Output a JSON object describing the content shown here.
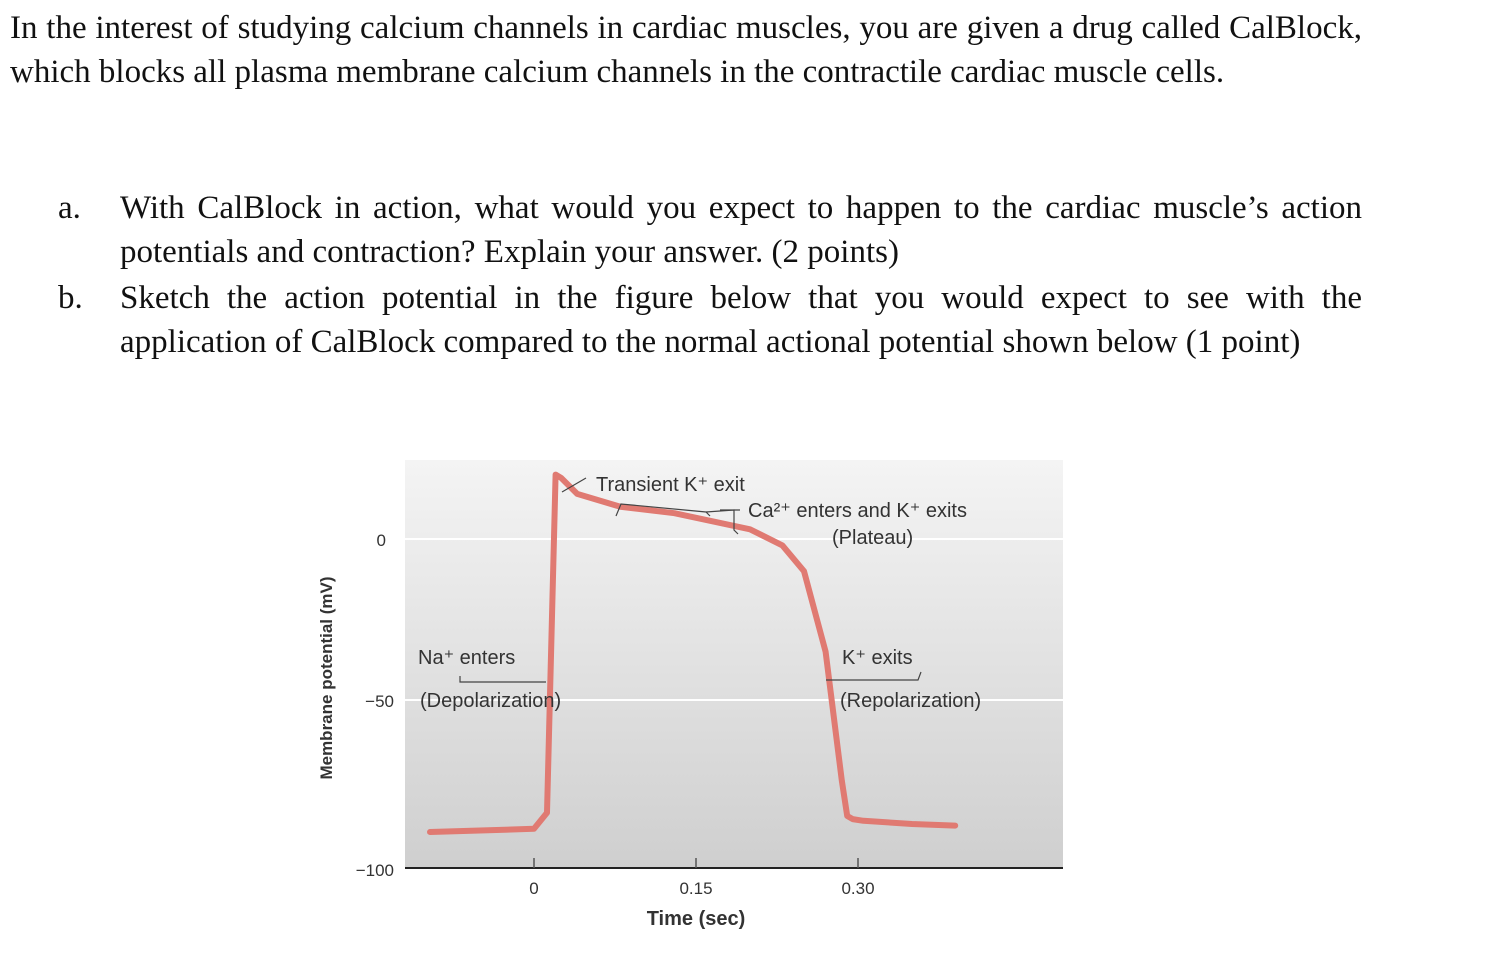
{
  "intro": "In the interest of studying calcium channels in cardiac muscles, you are given a drug called CalBlock, which blocks all plasma membrane calcium channels in the contractile cardiac muscle cells.",
  "questions": [
    {
      "marker": "a.",
      "text": "With CalBlock in action, what would you expect to happen to the cardiac muscle’s action potentials and contraction? Explain your answer. (2 points)"
    },
    {
      "marker": "b.",
      "text": "Sketch the action potential in the figure below that you would expect to see with the application of CalBlock compared to the normal actional potential shown below (1 point)"
    }
  ],
  "figure": {
    "ylabel": "Membrane potential (mV)",
    "xlabel": "Time (sec)",
    "yticks": [
      "0",
      "−50",
      "−100"
    ],
    "xticks": [
      "0",
      "0.15",
      "0.30"
    ],
    "annotations": {
      "transient": "Transient K⁺ exit",
      "plateau_line1": "Ca²⁺ enters and K⁺ exits",
      "plateau_line2": "(Plateau)",
      "na_line1": "Na⁺ enters",
      "na_line2": "(Depolarization)",
      "k_line1": "K⁺ exits",
      "k_line2": "(Repolarization)"
    },
    "colors": {
      "trace": "#e07a72",
      "panel_top": "#f4f4f4",
      "panel_bottom": "#cfcfcf",
      "axis": "#222222"
    }
  },
  "chart_data": {
    "type": "line",
    "xlabel": "Time (sec)",
    "ylabel": "Membrane potential (mV)",
    "xlim": [
      -0.005,
      0.495
    ],
    "ylim": [
      -100,
      25
    ],
    "series": [
      {
        "x": [
          -0.1,
          0.0,
          0.012,
          0.02,
          0.025,
          0.04,
          0.08,
          0.13,
          0.2,
          0.23,
          0.25,
          0.27,
          0.285,
          0.29,
          0.295,
          0.305,
          0.35,
          0.39
        ],
        "y": [
          -91,
          -90,
          -85,
          20,
          19,
          14,
          10,
          8,
          3,
          -2,
          -10,
          -35,
          -75,
          -86,
          -87,
          -87.5,
          -88.5,
          -89
        ]
      }
    ]
  }
}
